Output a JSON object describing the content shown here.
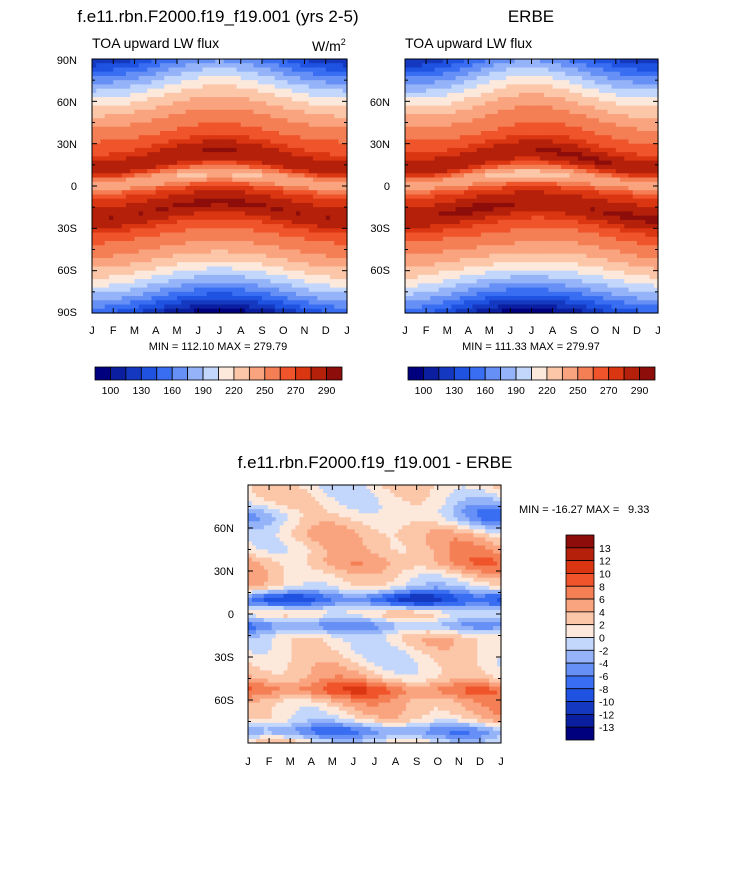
{
  "chart_data": [
    {
      "type": "heatmap",
      "title": "f.e11.rbn.F2000.f19_f19.001 (yrs 2-5)",
      "subtitle_left": "TOA upward LW flux",
      "units_label": "W/m",
      "units_exp": "2",
      "stats": "MIN = 112.10 MAX = 279.79",
      "x_ticks": [
        "J",
        "F",
        "M",
        "A",
        "M",
        "J",
        "J",
        "A",
        "S",
        "O",
        "N",
        "D",
        "J"
      ],
      "y_ticks": [
        "90N",
        "60N",
        "30N",
        "0",
        "30S",
        "60S",
        "90S"
      ],
      "lat_range": [
        -90,
        90
      ],
      "levels": [
        "100",
        "130",
        "160",
        "190",
        "220",
        "250",
        "270",
        "290"
      ],
      "ncolors": 16
    },
    {
      "type": "heatmap",
      "title": "ERBE",
      "subtitle_left": "TOA upward LW flux",
      "stats": "MIN = 111.33 MAX = 279.97",
      "x_ticks": [
        "J",
        "F",
        "M",
        "A",
        "M",
        "J",
        "J",
        "A",
        "S",
        "O",
        "N",
        "D",
        "J"
      ],
      "y_ticks": [
        "60N",
        "30N",
        "0",
        "30S",
        "60S"
      ],
      "lat_range": [
        -90,
        90
      ],
      "levels": [
        "100",
        "130",
        "160",
        "190",
        "220",
        "250",
        "270",
        "290"
      ],
      "ncolors": 16
    },
    {
      "type": "heatmap",
      "title": "f.e11.rbn.F2000.f19_f19.001 - ERBE",
      "stats_label": "MIN = -16.27 MAX =",
      "stats_max": "9.33",
      "x_ticks": [
        "J",
        "F",
        "M",
        "A",
        "M",
        "J",
        "J",
        "A",
        "S",
        "O",
        "N",
        "D",
        "J"
      ],
      "y_ticks": [
        "60N",
        "30N",
        "0",
        "30S",
        "60S"
      ],
      "lat_range": [
        -90,
        90
      ],
      "levels": [
        "13",
        "12",
        "10",
        "8",
        "6",
        "4",
        "2",
        "0",
        "-2",
        "-4",
        "-6",
        "-8",
        "-10",
        "-12",
        "-13"
      ],
      "ncolors": 16
    }
  ],
  "colors": {
    "bluered16": [
      "#00007f",
      "#0a1e9f",
      "#1438c0",
      "#1f52e0",
      "#3a6ef2",
      "#6690f5",
      "#94b3f8",
      "#c3d6fb",
      "#fde9dc",
      "#fcc6a9",
      "#f9a47f",
      "#f57f55",
      "#f0542b",
      "#db3612",
      "#b5200a",
      "#8c0d0a"
    ]
  }
}
